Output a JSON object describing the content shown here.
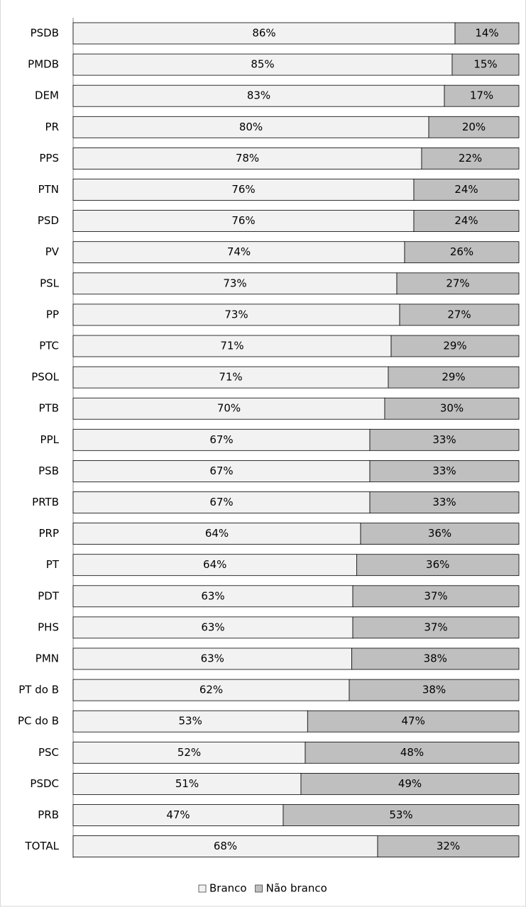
{
  "chart_data": {
    "type": "stacked_bar_horizontal",
    "categories": [
      "PSDB",
      "PMDB",
      "DEM",
      "PR",
      "PPS",
      "PTN",
      "PSD",
      "PV",
      "PSL",
      "PP",
      "PTC",
      "PSOL",
      "PTB",
      "PPL",
      "PSB",
      "PRTB",
      "PRP",
      "PT",
      "PDT",
      "PHS",
      "PMN",
      "PT do B",
      "PC do B",
      "PSC",
      "PSDC",
      "PRB",
      "TOTAL"
    ],
    "series": [
      {
        "name": "Branco",
        "color": "#f2f2f2",
        "values": [
          85.67,
          85.03,
          83.28,
          79.78,
          78.18,
          76.43,
          76.43,
          74.36,
          72.61,
          73.25,
          71.34,
          70.7,
          69.9,
          66.56,
          66.56,
          66.56,
          64.49,
          63.6,
          62.74,
          62.74,
          62.5,
          61.94,
          52.6,
          52.07,
          51.11,
          47.13,
          68.31
        ],
        "value_labels": [
          "86%",
          "85%",
          "83%",
          "80%",
          "78%",
          "76%",
          "76%",
          "74%",
          "73%",
          "73%",
          "71%",
          "71%",
          "70%",
          "67%",
          "67%",
          "67%",
          "64%",
          "64%",
          "63%",
          "63%",
          "63%",
          "62%",
          "53%",
          "52%",
          "51%",
          "47%",
          "68%"
        ]
      },
      {
        "name": "Não branco",
        "color": "#bfbfbf",
        "values": [
          14.33,
          14.97,
          16.72,
          20.22,
          21.82,
          23.57,
          23.57,
          25.64,
          27.39,
          26.75,
          28.66,
          29.3,
          30.1,
          33.44,
          33.44,
          33.44,
          35.51,
          36.4,
          37.26,
          37.26,
          37.5,
          38.06,
          47.4,
          47.93,
          48.89,
          52.87,
          31.69
        ],
        "value_labels": [
          "14%",
          "15%",
          "17%",
          "20%",
          "22%",
          "24%",
          "24%",
          "26%",
          "27%",
          "27%",
          "29%",
          "29%",
          "30%",
          "33%",
          "33%",
          "33%",
          "36%",
          "36%",
          "37%",
          "37%",
          "38%",
          "38%",
          "47%",
          "48%",
          "49%",
          "53%",
          "32%"
        ]
      }
    ],
    "xlim": [
      0,
      100
    ]
  }
}
